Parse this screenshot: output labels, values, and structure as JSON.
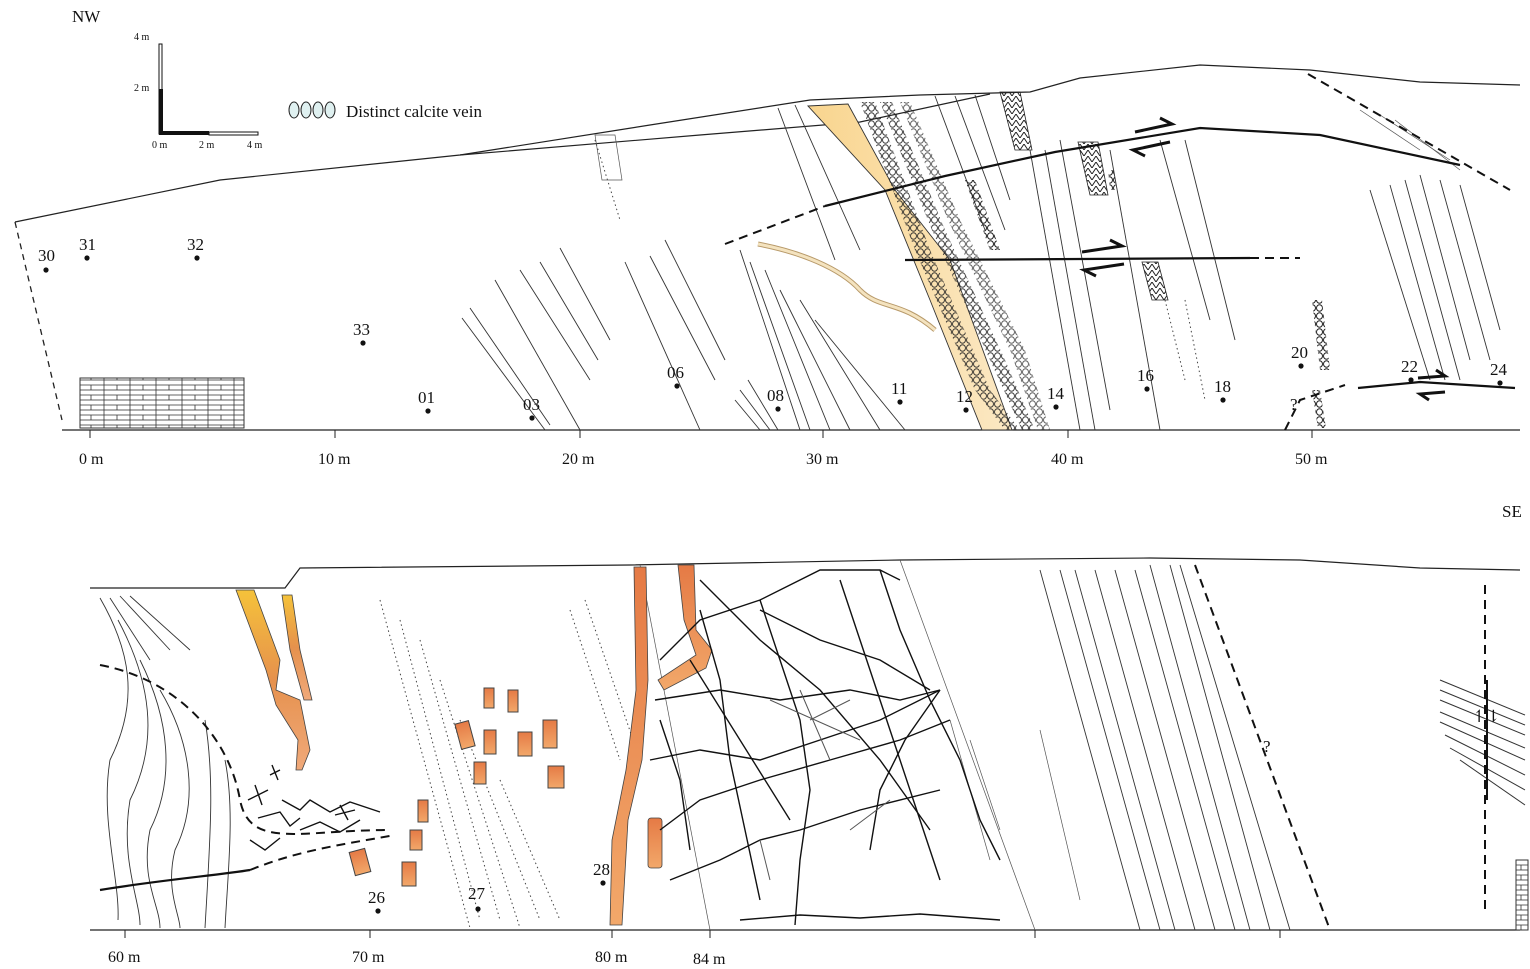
{
  "orientation": {
    "nw": "NW",
    "se": "SE"
  },
  "scale_bar": {
    "v_top": "4 m",
    "v_mid": "2 m",
    "h_zero": "0 m",
    "h_mid": "2 m",
    "h_end": "4 m"
  },
  "legend": {
    "symbol": "calcite-vein-icon",
    "label": "Distinct calcite vein"
  },
  "top_axis": [
    "0 m",
    "10 m",
    "20 m",
    "30 m",
    "40 m",
    "50 m"
  ],
  "bottom_axis": [
    "60 m",
    "70 m",
    "80 m",
    "84 m"
  ],
  "question_mark": "?",
  "fault_sense": "↿⇂",
  "samples_top": [
    "30",
    "31",
    "32",
    "33",
    "01",
    "03",
    "06",
    "08",
    "11",
    "12",
    "14",
    "16",
    "18",
    "20",
    "22",
    "24"
  ],
  "samples_bottom": [
    "26",
    "27",
    "28"
  ],
  "colors": {
    "yellow_bed": "#f8d9a0",
    "orange_vein": "#e8894a",
    "line": "#222222"
  }
}
